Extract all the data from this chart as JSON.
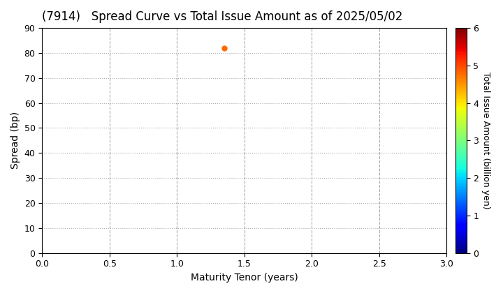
{
  "title": "(7914)   Spread Curve vs Total Issue Amount as of 2025/05/02",
  "xlabel": "Maturity Tenor (years)",
  "ylabel": "Spread (bp)",
  "colorbar_label": "Total Issue Amount (billion yen)",
  "xlim": [
    0.0,
    3.0
  ],
  "ylim": [
    0,
    90
  ],
  "xticks": [
    0.0,
    0.5,
    1.0,
    1.5,
    2.0,
    2.5,
    3.0
  ],
  "yticks": [
    0,
    10,
    20,
    30,
    40,
    50,
    60,
    70,
    80,
    90
  ],
  "colorbar_ticks": [
    0,
    1,
    2,
    3,
    4,
    5,
    6
  ],
  "colorbar_vmin": 0,
  "colorbar_vmax": 6,
  "scatter_x": [
    1.35
  ],
  "scatter_y": [
    82
  ],
  "scatter_color_value": [
    4.8
  ],
  "scatter_size": 25,
  "background_color": "#ffffff",
  "grid_color_dotted": "#aaaaaa",
  "grid_color_dashed": "#aaaaaa",
  "title_fontsize": 12,
  "axis_label_fontsize": 10,
  "tick_fontsize": 9,
  "colorbar_fontsize": 9
}
